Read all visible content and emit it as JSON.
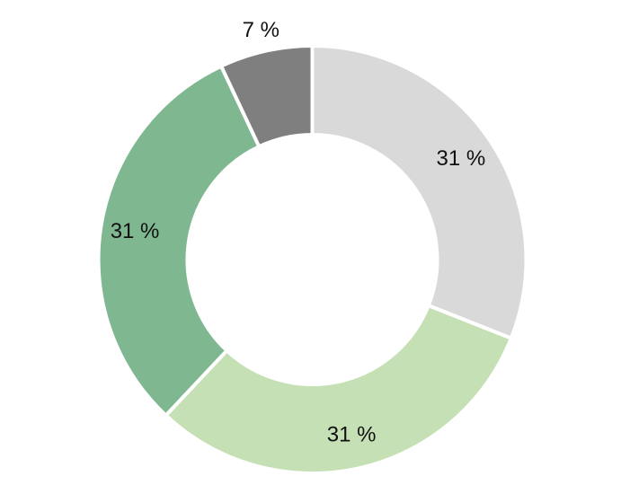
{
  "chart_data": {
    "type": "pie",
    "style": "donut",
    "title": "",
    "slices": [
      {
        "value": 31,
        "label": "31 %",
        "color": "#d9d9d9"
      },
      {
        "value": 31,
        "label": "31 %",
        "color": "#c5e0b4"
      },
      {
        "value": 31,
        "label": "31 %",
        "color": "#7fb890"
      },
      {
        "value": 7,
        "label": "7 %",
        "color": "#7f7f7f"
      }
    ],
    "start_angle_deg": 0,
    "direction": "clockwise",
    "legend": "none"
  }
}
